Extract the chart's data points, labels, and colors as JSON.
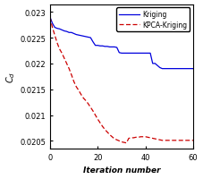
{
  "title": "",
  "xlabel": "Iteration number",
  "ylabel": "$C_d$",
  "xlim": [
    0,
    60
  ],
  "ylim": [
    0.02035,
    0.02315
  ],
  "yticks": [
    0.0205,
    0.021,
    0.0215,
    0.022,
    0.0225,
    0.023
  ],
  "xticks": [
    0,
    20,
    40,
    60
  ],
  "legend_labels": [
    "Kriging",
    "KPCA-Kriging"
  ],
  "kriging_x": [
    0,
    1,
    2,
    3,
    4,
    5,
    6,
    7,
    8,
    9,
    10,
    11,
    12,
    13,
    14,
    15,
    16,
    17,
    18,
    19,
    20,
    21,
    22,
    23,
    24,
    25,
    26,
    27,
    28,
    29,
    30,
    31,
    32,
    33,
    34,
    35,
    36,
    37,
    38,
    39,
    40,
    41,
    42,
    43,
    44,
    45,
    46,
    47,
    48,
    49,
    50,
    51,
    52,
    53,
    54,
    55,
    56,
    57,
    58,
    59,
    60
  ],
  "kriging_y": [
    0.0229,
    0.02278,
    0.0227,
    0.02268,
    0.02267,
    0.02265,
    0.02263,
    0.02262,
    0.0226,
    0.0226,
    0.02258,
    0.02256,
    0.02255,
    0.02254,
    0.02253,
    0.02252,
    0.02251,
    0.0225,
    0.02242,
    0.02235,
    0.02235,
    0.02234,
    0.02234,
    0.02233,
    0.02233,
    0.02232,
    0.02232,
    0.02232,
    0.02231,
    0.02221,
    0.0222,
    0.0222,
    0.0222,
    0.0222,
    0.0222,
    0.0222,
    0.0222,
    0.0222,
    0.0222,
    0.0222,
    0.0222,
    0.0222,
    0.0222,
    0.022,
    0.022,
    0.02196,
    0.02192,
    0.0219,
    0.0219,
    0.0219,
    0.0219,
    0.0219,
    0.0219,
    0.0219,
    0.0219,
    0.0219,
    0.0219,
    0.0219,
    0.0219,
    0.0219,
    0.0219
  ],
  "kpca_x": [
    0,
    1,
    2,
    3,
    4,
    5,
    6,
    7,
    8,
    9,
    10,
    11,
    12,
    13,
    14,
    15,
    16,
    17,
    18,
    19,
    20,
    21,
    22,
    23,
    24,
    25,
    26,
    27,
    28,
    29,
    30,
    31,
    32,
    33,
    34,
    35,
    36,
    37,
    38,
    39,
    40,
    41,
    42,
    43,
    44,
    45,
    46,
    47,
    48,
    49,
    50,
    51,
    52,
    53,
    54,
    55,
    56,
    57,
    58,
    59,
    60
  ],
  "kpca_y": [
    0.0229,
    0.0227,
    0.02255,
    0.0224,
    0.02228,
    0.0222,
    0.0221,
    0.022,
    0.0219,
    0.02178,
    0.02165,
    0.02155,
    0.02148,
    0.0214,
    0.02133,
    0.02128,
    0.02122,
    0.02115,
    0.02108,
    0.021,
    0.02092,
    0.02085,
    0.02078,
    0.02072,
    0.02067,
    0.02062,
    0.02058,
    0.02054,
    0.02052,
    0.0205,
    0.02048,
    0.02047,
    0.02046,
    0.02055,
    0.02056,
    0.02056,
    0.02057,
    0.02057,
    0.02058,
    0.02058,
    0.02058,
    0.02057,
    0.02056,
    0.02055,
    0.02054,
    0.02053,
    0.02052,
    0.02051,
    0.02051,
    0.02051,
    0.02051,
    0.02051,
    0.02051,
    0.02051,
    0.02051,
    0.02051,
    0.02051,
    0.02051,
    0.02051,
    0.02051,
    0.02051
  ],
  "kriging_color": "#0000dd",
  "kpca_color": "#cc0000",
  "bg_color": "#ffffff",
  "fig_bg": "#ffffff"
}
